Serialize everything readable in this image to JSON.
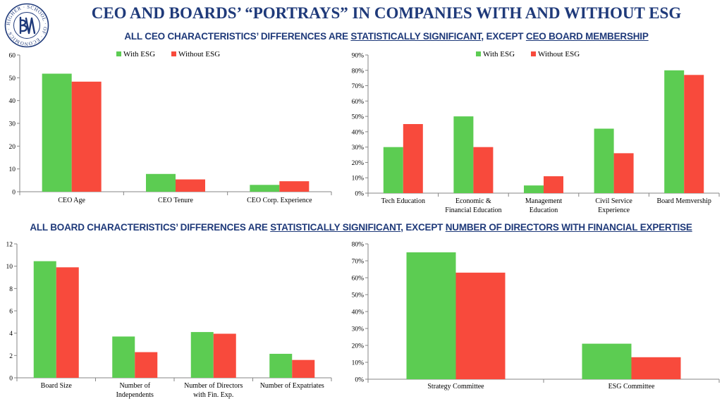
{
  "header": {
    "title": "CEO AND BOARDS’ “PORTRAYS” IN COMPANIES WITH AND WITHOUT ESG",
    "subtitle1": {
      "pre": "ALL CEO CHARACTERISTICS’ DIFFERENCES ARE ",
      "u1": "STATISTICALLY SIGNIFICANT",
      "mid": ", EXCEPT ",
      "u2": "CEO BOARD MEMBERSHIP"
    },
    "subtitle2": {
      "pre": "ALL BOARD CHARACTERISTICS’ DIFFERENCES ARE ",
      "u1": "STATISTICALLY SIGNIFICANT",
      "mid": ", EXCEPT ",
      "u2": "NUMBER OF DIRECTORS WITH FINANCIAL EXPERTISE"
    }
  },
  "logo": {
    "ring_text": "HIGHER · SCHOOL · OF · ECONOMICS ·",
    "color": "#1f3a7a"
  },
  "colors": {
    "with_esg": "#5ccc52",
    "without_esg": "#f84a3c",
    "axis": "#868686"
  },
  "chart_data": [
    {
      "type": "bar",
      "categories": [
        [
          "CEO Age"
        ],
        [
          "CEO Tenure"
        ],
        [
          "CEO Corp. Experience"
        ]
      ],
      "series": [
        {
          "name": "With ESG",
          "values": [
            51.8,
            7.8,
            3.0
          ]
        },
        {
          "name": "Without ESG",
          "values": [
            48.3,
            5.4,
            4.6
          ]
        }
      ],
      "ylim": [
        0,
        60
      ],
      "yticks": [
        0,
        10,
        20,
        30,
        40,
        50,
        60
      ],
      "percent": false,
      "legend": "top-center"
    },
    {
      "type": "bar",
      "categories": [
        [
          "Tech Education"
        ],
        [
          "Economic &",
          "Financial Education"
        ],
        [
          "Management",
          "Education"
        ],
        [
          "Civil Service",
          "Experience"
        ],
        [
          "Board Memvership"
        ]
      ],
      "series": [
        {
          "name": "With ESG",
          "values": [
            30,
            50,
            5,
            42,
            80
          ]
        },
        {
          "name": "Without ESG",
          "values": [
            45,
            30,
            11,
            26,
            77
          ]
        }
      ],
      "ylim": [
        0,
        90
      ],
      "yticks": [
        0,
        10,
        20,
        30,
        40,
        50,
        60,
        70,
        80,
        90
      ],
      "percent": true,
      "legend": "top-center"
    },
    {
      "type": "bar",
      "categories": [
        [
          "Board Size"
        ],
        [
          "Number of",
          "Independents"
        ],
        [
          "Number of Directors",
          "with Fin. Exp."
        ],
        [
          "Number of Expatriates"
        ]
      ],
      "series": [
        {
          "name": "With ESG",
          "values": [
            10.45,
            3.7,
            4.1,
            2.15
          ]
        },
        {
          "name": "Without ESG",
          "values": [
            9.9,
            2.3,
            3.95,
            1.6
          ]
        }
      ],
      "ylim": [
        0,
        12
      ],
      "yticks": [
        0,
        2,
        4,
        6,
        8,
        10,
        12
      ],
      "percent": false,
      "legend": "none"
    },
    {
      "type": "bar",
      "categories": [
        [
          "Strategy Committee"
        ],
        [
          "ESG Committee"
        ]
      ],
      "series": [
        {
          "name": "With ESG",
          "values": [
            75,
            21
          ]
        },
        {
          "name": "Without ESG",
          "values": [
            63,
            13
          ]
        }
      ],
      "ylim": [
        0,
        80
      ],
      "yticks": [
        0,
        10,
        20,
        30,
        40,
        50,
        60,
        70,
        80
      ],
      "percent": true,
      "legend": "none"
    }
  ]
}
